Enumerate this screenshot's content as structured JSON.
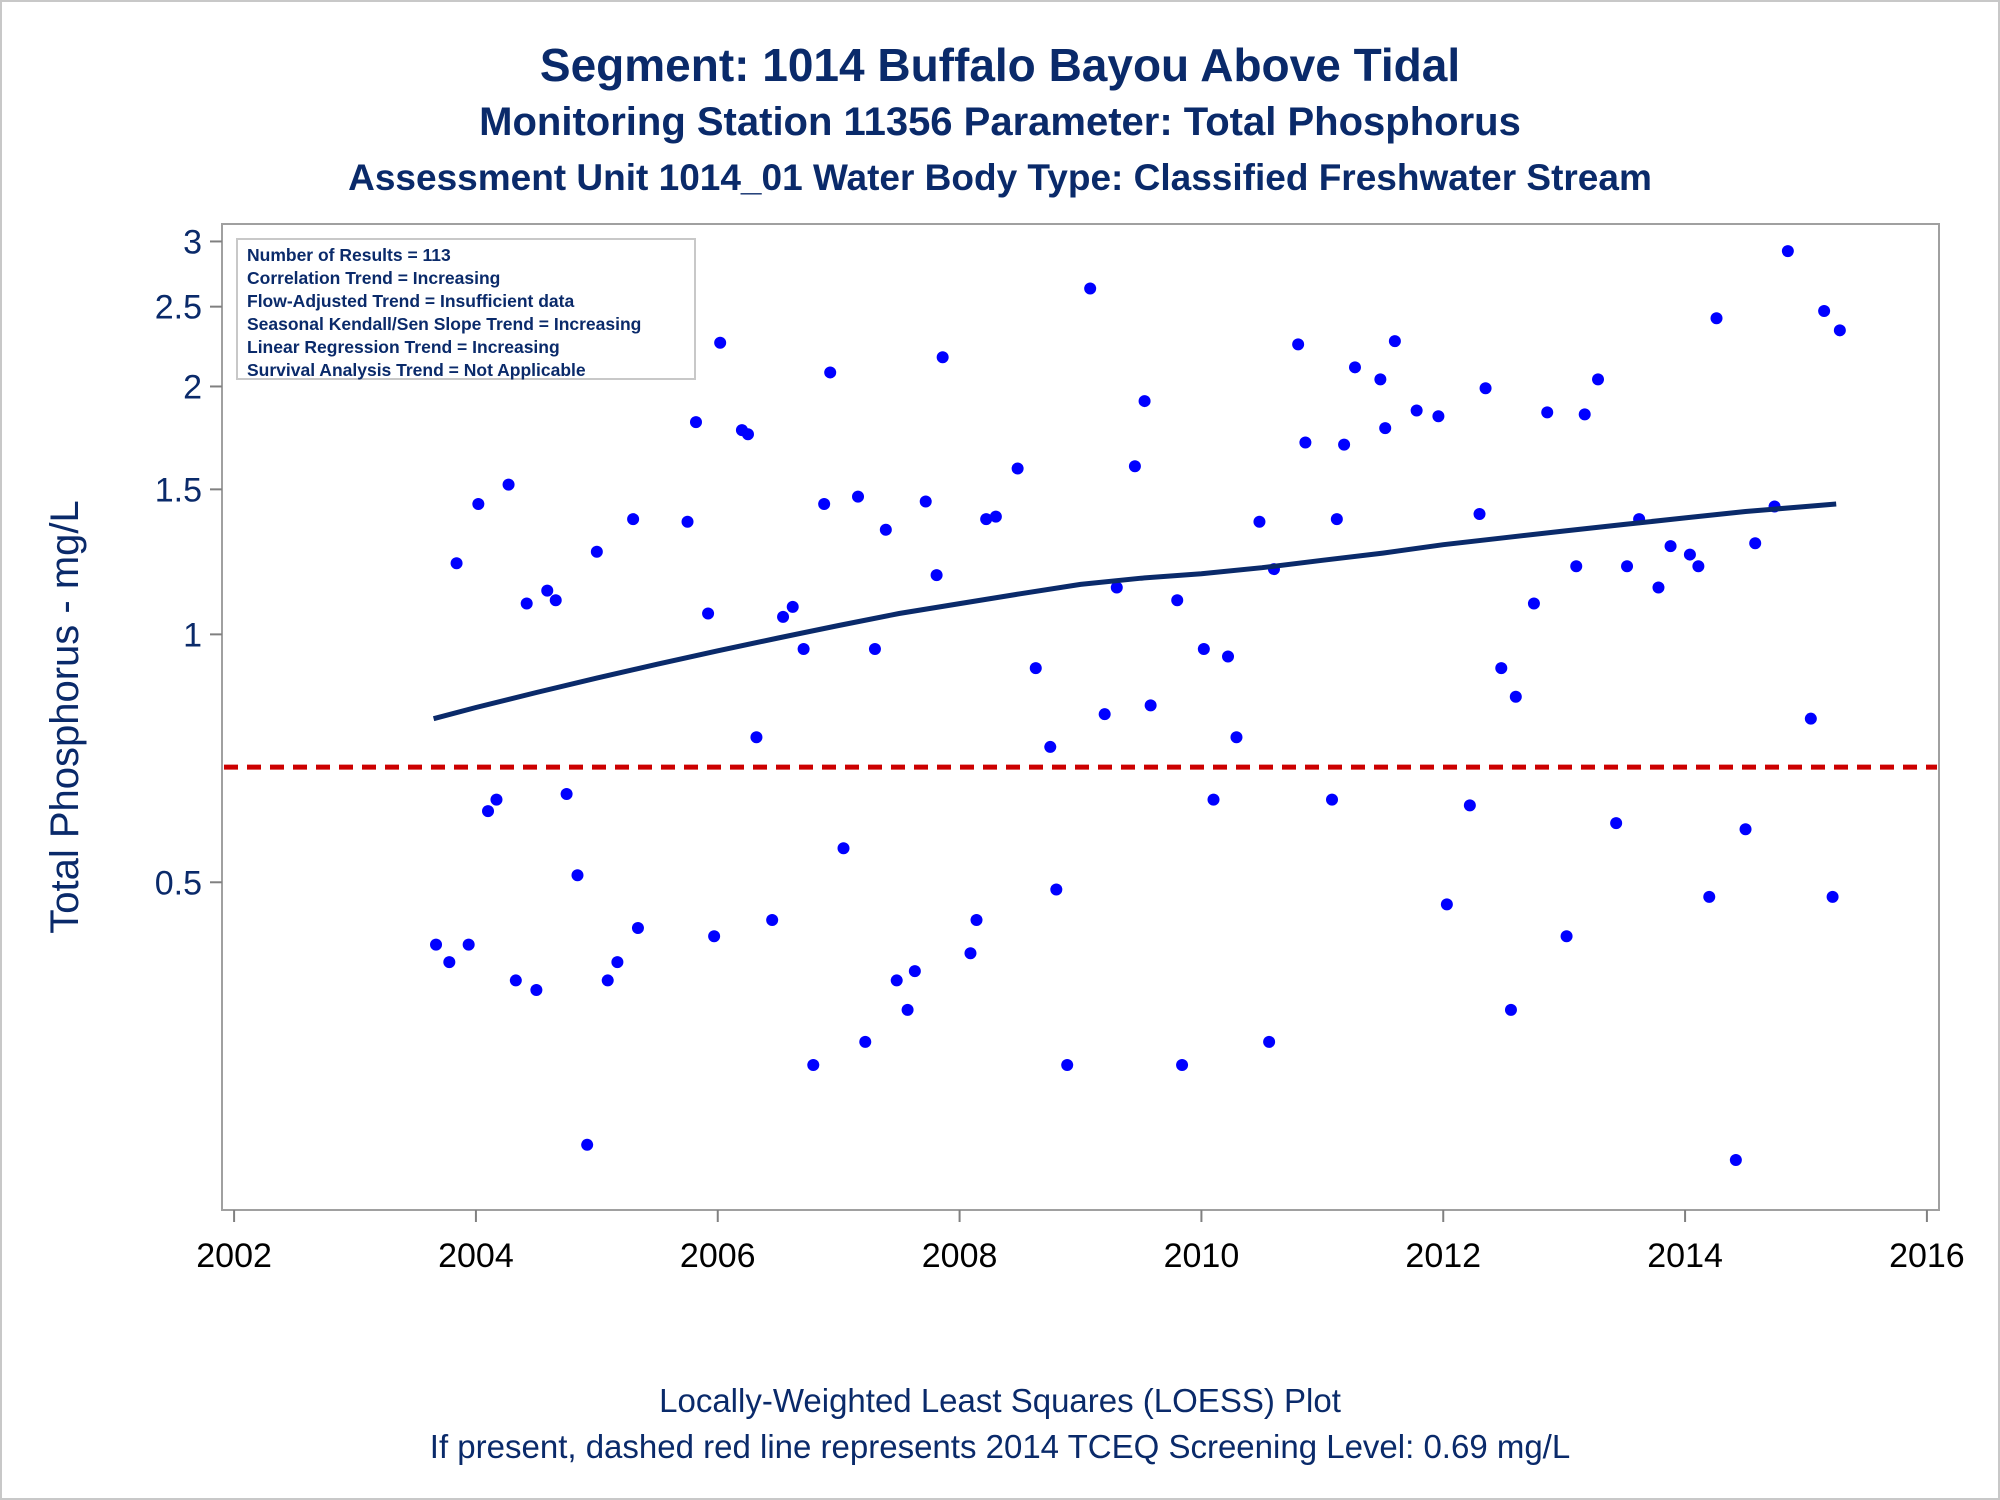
{
  "titles": {
    "line1": "Segment: 1014  Buffalo Bayou Above Tidal",
    "line2": "Monitoring Station 11356 Parameter: Total Phosphorus",
    "line3": "Assessment Unit 1014_01   Water Body Type: Classified Freshwater Stream"
  },
  "stats": [
    "Number of Results = 113",
    "Correlation Trend = Increasing",
    "Flow-Adjusted Trend = Insufficient data",
    "Seasonal Kendall/Sen Slope Trend = Increasing",
    "Linear Regression Trend = Increasing",
    "Survival Analysis Trend = Not Applicable"
  ],
  "footer": {
    "line1": "Locally-Weighted Least Squares (LOESS) Plot",
    "line2": "If present, dashed red line represents 2014 TCEQ Screening Level: 0.69 mg/L"
  },
  "colors": {
    "title": "#0a2a6a",
    "points": "#0000ff",
    "loess": "#0a2a6a",
    "screening": "#cc0000",
    "frame": "#a0a0a0"
  },
  "chart_data": {
    "type": "scatter",
    "title": "Segment: 1014  Buffalo Bayou Above Tidal",
    "xlabel": "",
    "ylabel": "Total Phosphorus - mg/L",
    "yscale": "log",
    "xlim": [
      2001.9,
      2016.1
    ],
    "ylim": [
      0.2,
      3.15
    ],
    "x_ticks": [
      2002,
      2004,
      2006,
      2008,
      2010,
      2012,
      2014,
      2016
    ],
    "y_ticks": [
      0.5,
      1,
      1.5,
      2,
      2.5,
      3
    ],
    "grid": false,
    "screening_level": 0.69,
    "series": [
      {
        "type": "scatter",
        "points": [
          [
            2003.67,
            0.42
          ],
          [
            2003.78,
            0.4
          ],
          [
            2003.84,
            1.22
          ],
          [
            2003.94,
            0.42
          ],
          [
            2004.02,
            1.44
          ],
          [
            2004.1,
            0.61
          ],
          [
            2004.17,
            0.63
          ],
          [
            2004.27,
            1.52
          ],
          [
            2004.33,
            0.38
          ],
          [
            2004.42,
            1.09
          ],
          [
            2004.5,
            0.37
          ],
          [
            2004.59,
            1.13
          ],
          [
            2004.66,
            1.1
          ],
          [
            2004.75,
            0.64
          ],
          [
            2004.84,
            0.51
          ],
          [
            2004.92,
            0.24
          ],
          [
            2005.0,
            1.26
          ],
          [
            2005.09,
            0.38
          ],
          [
            2005.17,
            0.4
          ],
          [
            2005.3,
            1.38
          ],
          [
            2005.34,
            0.44
          ],
          [
            2005.75,
            1.37
          ],
          [
            2005.82,
            1.81
          ],
          [
            2005.92,
            1.06
          ],
          [
            2005.97,
            0.43
          ],
          [
            2006.02,
            2.26
          ],
          [
            2006.2,
            1.77
          ],
          [
            2006.25,
            1.75
          ],
          [
            2006.32,
            0.75
          ],
          [
            2006.45,
            0.45
          ],
          [
            2006.54,
            1.05
          ],
          [
            2006.62,
            1.08
          ],
          [
            2006.71,
            0.96
          ],
          [
            2006.79,
            0.3
          ],
          [
            2006.88,
            1.44
          ],
          [
            2006.93,
            2.08
          ],
          [
            2007.04,
            0.55
          ],
          [
            2007.16,
            1.47
          ],
          [
            2007.22,
            0.32
          ],
          [
            2007.3,
            0.96
          ],
          [
            2007.39,
            1.34
          ],
          [
            2007.48,
            0.38
          ],
          [
            2007.57,
            0.35
          ],
          [
            2007.63,
            0.39
          ],
          [
            2007.72,
            1.45
          ],
          [
            2007.81,
            1.18
          ],
          [
            2007.86,
            2.17
          ],
          [
            2008.09,
            0.41
          ],
          [
            2008.14,
            0.45
          ],
          [
            2008.22,
            1.38
          ],
          [
            2008.3,
            1.39
          ],
          [
            2008.48,
            1.59
          ],
          [
            2008.63,
            0.91
          ],
          [
            2008.75,
            0.73
          ],
          [
            2008.8,
            0.49
          ],
          [
            2008.89,
            0.3
          ],
          [
            2009.08,
            2.63
          ],
          [
            2009.2,
            0.8
          ],
          [
            2009.3,
            1.14
          ],
          [
            2009.45,
            1.6
          ],
          [
            2009.53,
            1.92
          ],
          [
            2009.58,
            0.82
          ],
          [
            2009.8,
            1.1
          ],
          [
            2009.84,
            0.3
          ],
          [
            2010.02,
            0.96
          ],
          [
            2010.1,
            0.63
          ],
          [
            2010.22,
            0.94
          ],
          [
            2010.29,
            0.75
          ],
          [
            2010.48,
            1.37
          ],
          [
            2010.56,
            0.32
          ],
          [
            2010.6,
            1.2
          ],
          [
            2010.8,
            2.25
          ],
          [
            2010.86,
            1.71
          ],
          [
            2011.08,
            0.63
          ],
          [
            2011.12,
            1.38
          ],
          [
            2011.18,
            1.7
          ],
          [
            2011.27,
            2.11
          ],
          [
            2011.48,
            2.04
          ],
          [
            2011.52,
            1.78
          ],
          [
            2011.6,
            2.27
          ],
          [
            2011.78,
            1.87
          ],
          [
            2011.96,
            1.84
          ],
          [
            2012.03,
            0.47
          ],
          [
            2012.22,
            0.62
          ],
          [
            2012.3,
            1.4
          ],
          [
            2012.35,
            1.99
          ],
          [
            2012.48,
            0.91
          ],
          [
            2012.56,
            0.35
          ],
          [
            2012.6,
            0.84
          ],
          [
            2012.75,
            1.09
          ],
          [
            2012.86,
            1.86
          ],
          [
            2013.02,
            0.43
          ],
          [
            2013.1,
            1.21
          ],
          [
            2013.17,
            1.85
          ],
          [
            2013.28,
            2.04
          ],
          [
            2013.43,
            0.59
          ],
          [
            2013.52,
            1.21
          ],
          [
            2013.62,
            1.38
          ],
          [
            2013.78,
            1.14
          ],
          [
            2013.88,
            1.28
          ],
          [
            2014.04,
            1.25
          ],
          [
            2014.11,
            1.21
          ],
          [
            2014.2,
            0.48
          ],
          [
            2014.26,
            2.42
          ],
          [
            2014.42,
            0.23
          ],
          [
            2014.5,
            0.58
          ],
          [
            2014.58,
            1.29
          ],
          [
            2014.74,
            1.43
          ],
          [
            2014.85,
            2.92
          ],
          [
            2015.04,
            0.79
          ],
          [
            2015.15,
            2.47
          ],
          [
            2015.22,
            0.48
          ],
          [
            2015.28,
            2.34
          ]
        ]
      },
      {
        "type": "line",
        "points": [
          [
            2003.65,
            0.79
          ],
          [
            2004.0,
            0.815
          ],
          [
            2004.5,
            0.85
          ],
          [
            2005.0,
            0.885
          ],
          [
            2005.5,
            0.92
          ],
          [
            2006.0,
            0.955
          ],
          [
            2006.5,
            0.99
          ],
          [
            2007.0,
            1.025
          ],
          [
            2007.5,
            1.06
          ],
          [
            2008.0,
            1.09
          ],
          [
            2008.5,
            1.12
          ],
          [
            2009.0,
            1.15
          ],
          [
            2009.5,
            1.17
          ],
          [
            2010.0,
            1.185
          ],
          [
            2010.5,
            1.205
          ],
          [
            2011.0,
            1.23
          ],
          [
            2011.5,
            1.255
          ],
          [
            2012.0,
            1.285
          ],
          [
            2012.5,
            1.31
          ],
          [
            2013.0,
            1.335
          ],
          [
            2013.5,
            1.36
          ],
          [
            2014.0,
            1.385
          ],
          [
            2014.5,
            1.41
          ],
          [
            2015.0,
            1.43
          ],
          [
            2015.25,
            1.44
          ]
        ]
      }
    ]
  }
}
